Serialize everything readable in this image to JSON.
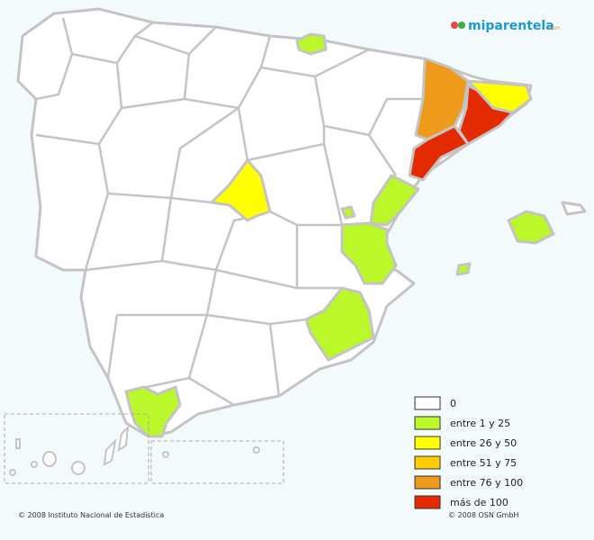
{
  "header": {
    "logo": "miparentela",
    "logo_suffix": ".com"
  },
  "legend": {
    "items": [
      {
        "label": "0",
        "color": "#ffffff"
      },
      {
        "label": "entre 1 y 25",
        "color": "#bbf82a"
      },
      {
        "label": "entre 26 y 50",
        "color": "#ffff00"
      },
      {
        "label": "entre 51 y 75",
        "color": "#ffcc00"
      },
      {
        "label": "entre 76 y 100",
        "color": "#ee9a1a"
      },
      {
        "label": "más de 100",
        "color": "#e42a00"
      }
    ]
  },
  "footer": {
    "left": "© 2008 Instituto Nacional de Estadística",
    "right": "© 2008 OSN GmbH"
  }
}
